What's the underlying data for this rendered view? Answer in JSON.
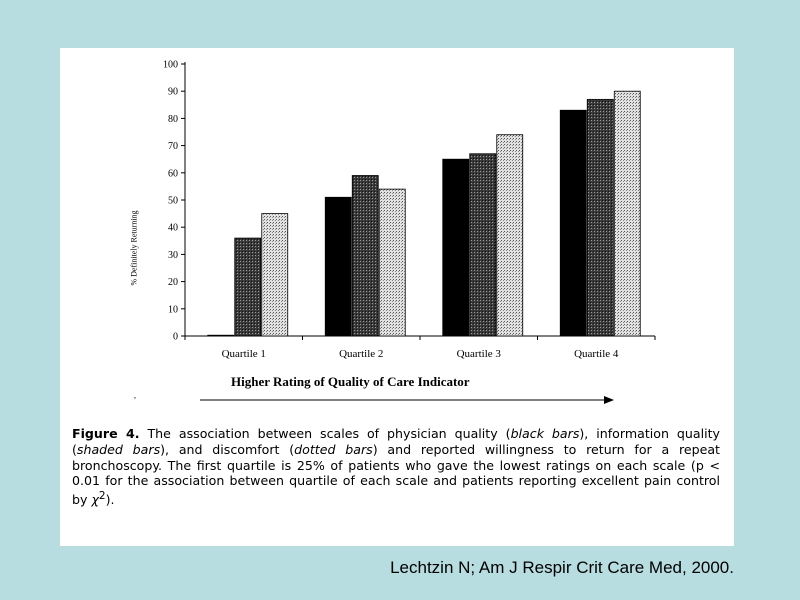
{
  "chart_data": {
    "type": "bar",
    "categories": [
      "Quartile 1",
      "Quartile 2",
      "Quartile 3",
      "Quartile 4"
    ],
    "series": [
      {
        "pattern": "black",
        "values": [
          0,
          51,
          65,
          83
        ]
      },
      {
        "pattern": "shaded",
        "values": [
          36,
          59,
          67,
          87
        ]
      },
      {
        "pattern": "dotted",
        "values": [
          45,
          54,
          74,
          90
        ]
      }
    ],
    "yticks": [
      0,
      10,
      20,
      30,
      40,
      50,
      60,
      70,
      80,
      90,
      100
    ],
    "ylim": [
      0,
      100
    ],
    "ylabel": "% Definitely Returning",
    "xlabel": "Higher Rating of Quality of Care Indicator",
    "grid": false,
    "colors": {
      "black": "#000000",
      "shaded": "#2a2a2a",
      "dotted": "#c8c8c8"
    }
  },
  "stray_mark": ",",
  "caption": {
    "figure_label": "Figure 4.",
    "t1": " The association between scales of physician quality (",
    "i1": "black bars",
    "t2": "), information quality (",
    "i2": "shaded bars",
    "t3": "), and discomfort (",
    "i3": "dotted bars",
    "t4": ") and reported willingness to return for a repeat bronchoscopy. The first quartile is 25% of patients who gave the lowest ratings on each scale (p < 0.01 for the association between quartile of each scale and patients reporting excellent pain control by ",
    "chi": "χ",
    "sup": "2",
    "t5": ")."
  },
  "source": "Lechtzin N; Am J Respir Crit Care Med, 2000."
}
